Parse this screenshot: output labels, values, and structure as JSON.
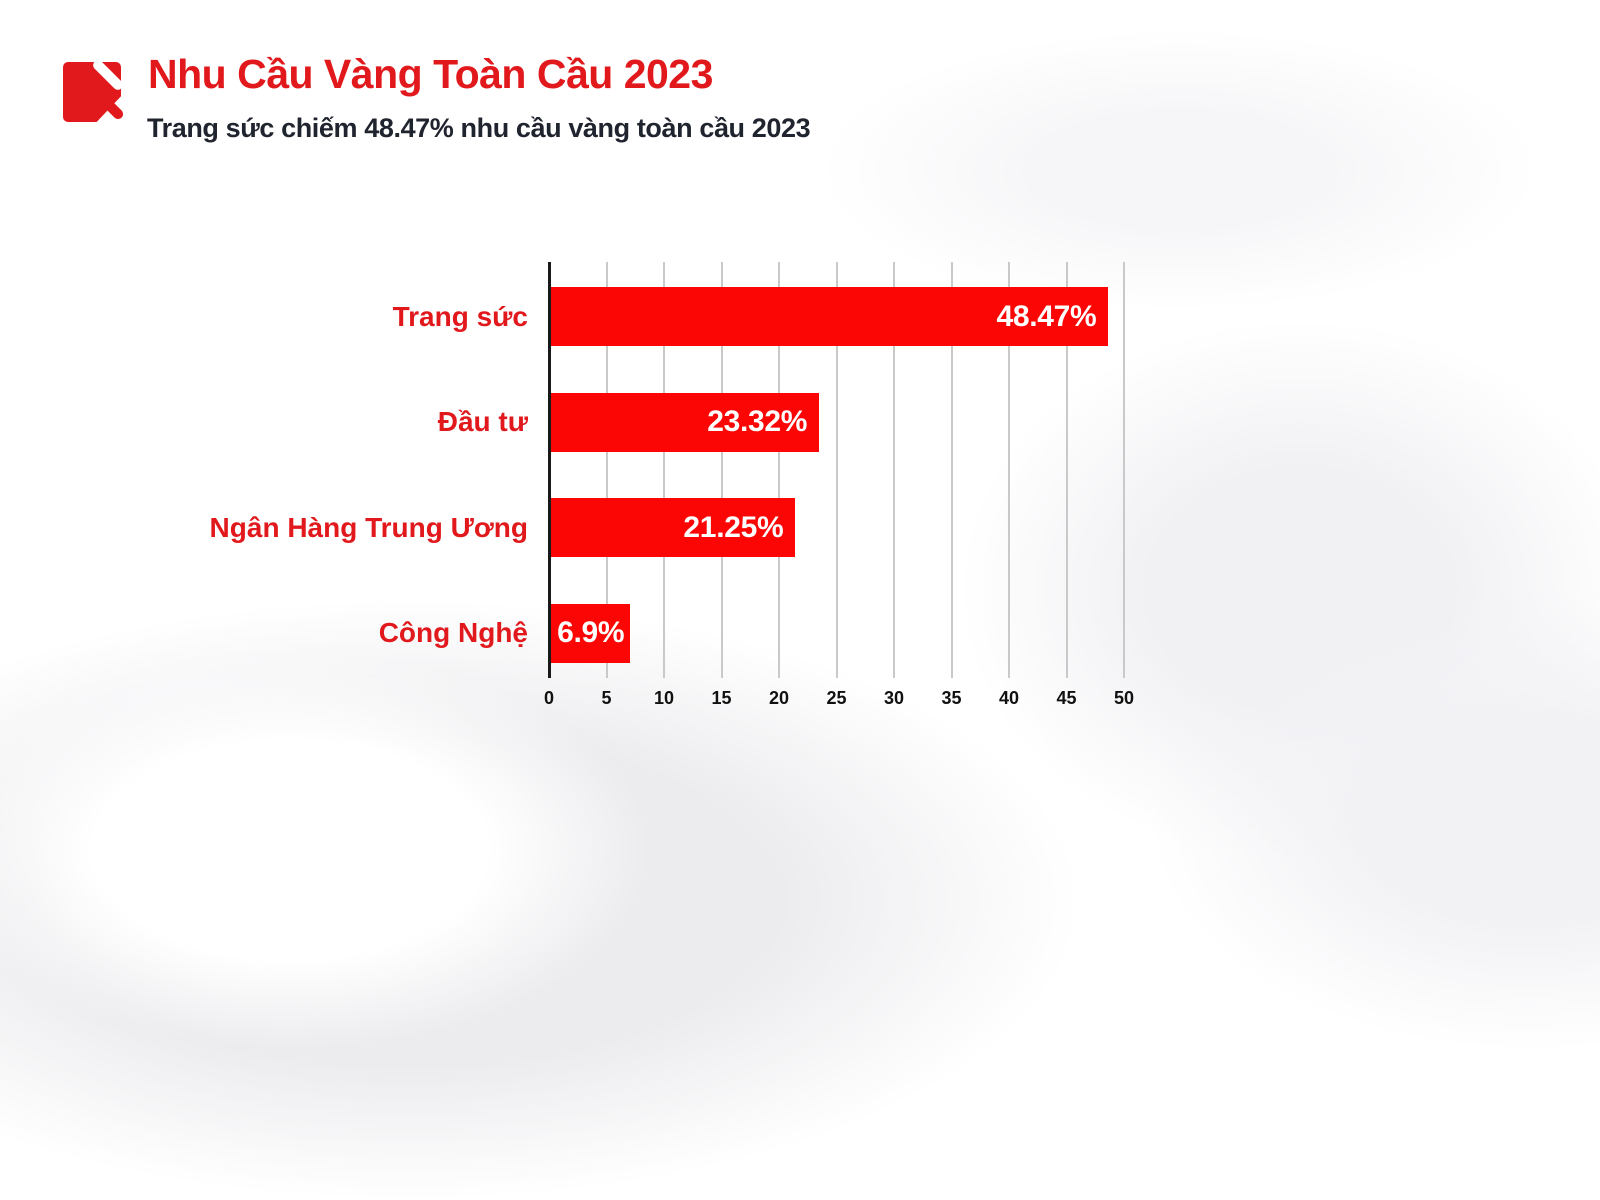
{
  "page": {
    "background": "#ffffff"
  },
  "header": {
    "logo_icon": "brand-arrow-slash-logo",
    "logo_color": "#e2191c",
    "title": "Nhu Cầu Vàng Toàn Cầu 2023",
    "title_color": "#e2191c",
    "subtitle": "Trang sức chiếm 48.47% nhu cầu vàng toàn cầu 2023",
    "subtitle_color": "#20242e"
  },
  "chart_data": {
    "type": "bar",
    "orientation": "horizontal",
    "categories": [
      "Trang sức",
      "Đầu tư",
      "Ngân Hàng Trung Ương",
      "Công Nghệ"
    ],
    "values": [
      48.47,
      23.32,
      21.25,
      6.9
    ],
    "value_labels": [
      "48.47%",
      "23.32%",
      "21.25%",
      "6.9%"
    ],
    "x_ticks": [
      0,
      5,
      10,
      15,
      20,
      25,
      30,
      35,
      40,
      45,
      50
    ],
    "xlim": [
      0,
      50
    ],
    "grid": true,
    "grid_axis": "x",
    "legend": false,
    "bar_color": "#fb0505",
    "category_label_color": "#e2191c",
    "value_label_color": "#ffffff",
    "tick_label_color": "#111111",
    "gridline_color": "#c9c9c9",
    "axis_color": "#191919"
  }
}
